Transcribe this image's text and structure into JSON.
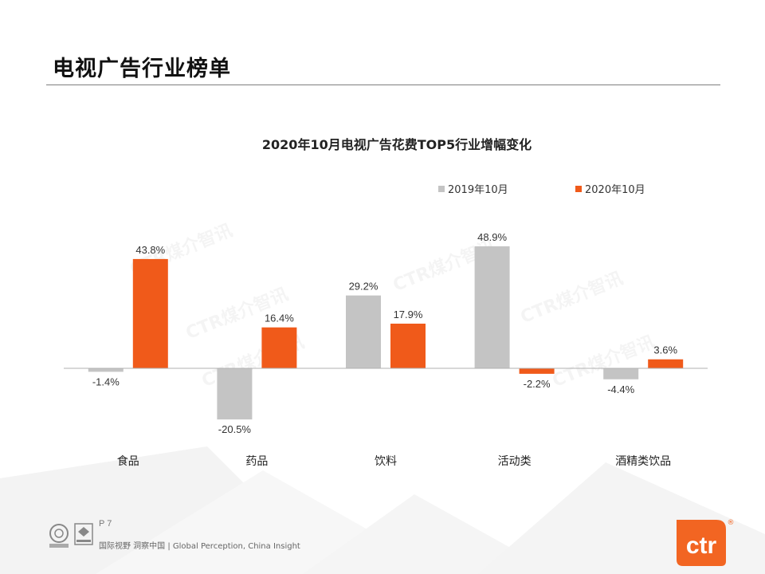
{
  "slide": {
    "title": "电视广告行业榜单",
    "page_number": "P 7",
    "tagline": "国际视野  洞察中国 |  Global Perception,  China Insight",
    "watermark": "CTR煤介智讯",
    "brand_logo_text": "ctr",
    "brand_registered": "®",
    "certification_icons": [
      "sgs-certification-icon",
      "ukas-certification-icon"
    ]
  },
  "colors": {
    "series_2019": "#c4c4c4",
    "series_2020": "#f05a1a",
    "brand": "#f26522"
  },
  "chart_data": {
    "type": "bar",
    "title": "2020年10月电视广告花费TOP5行业增幅变化",
    "categories": [
      "食品",
      "药品",
      "饮料",
      "活动类",
      "酒精类饮品"
    ],
    "series": [
      {
        "name": "2019年10月",
        "values": [
          -1.4,
          -20.5,
          29.2,
          48.9,
          -4.4
        ],
        "labels": [
          "-1.4%",
          "-20.5%",
          "29.2%",
          "48.9%",
          "-4.4%"
        ]
      },
      {
        "name": "2020年10月",
        "values": [
          43.8,
          16.4,
          17.9,
          -2.2,
          3.6
        ],
        "labels": [
          "43.8%",
          "16.4%",
          "17.9%",
          "-2.2%",
          "3.6%"
        ]
      }
    ],
    "unit": "%",
    "legend": "top-right",
    "grid": false,
    "ylim": [
      -25,
      55
    ]
  }
}
